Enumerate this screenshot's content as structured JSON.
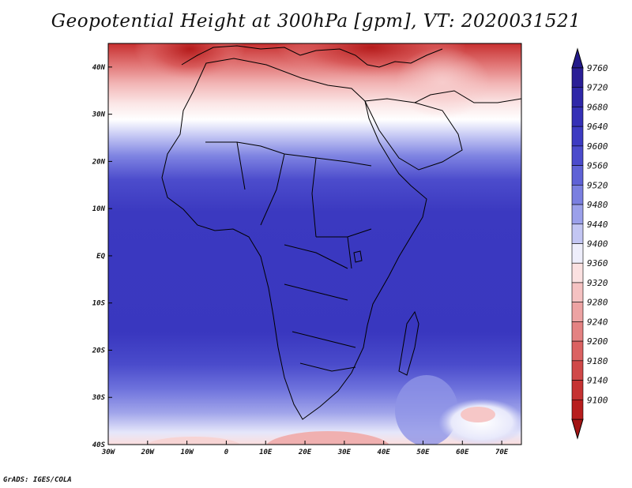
{
  "title": "Geopotential Height at 300hPa [gpm], VT: 2020031521",
  "credit": "GrADS: IGES/COLA",
  "map": {
    "lon_range": [
      -30,
      75
    ],
    "lat_range": [
      -40,
      45
    ],
    "x_ticks": [
      {
        "value": -30,
        "label": "30W"
      },
      {
        "value": -20,
        "label": "20W"
      },
      {
        "value": -10,
        "label": "10W"
      },
      {
        "value": 0,
        "label": "0"
      },
      {
        "value": 10,
        "label": "10E"
      },
      {
        "value": 20,
        "label": "20E"
      },
      {
        "value": 30,
        "label": "30E"
      },
      {
        "value": 40,
        "label": "40E"
      },
      {
        "value": 50,
        "label": "50E"
      },
      {
        "value": 60,
        "label": "60E"
      },
      {
        "value": 70,
        "label": "70E"
      }
    ],
    "y_ticks": [
      {
        "value": 40,
        "label": "40N"
      },
      {
        "value": 30,
        "label": "30N"
      },
      {
        "value": 20,
        "label": "20N"
      },
      {
        "value": 10,
        "label": "10N"
      },
      {
        "value": 0,
        "label": "EQ"
      },
      {
        "value": -10,
        "label": "10S"
      },
      {
        "value": -20,
        "label": "20S"
      },
      {
        "value": -30,
        "label": "30S"
      },
      {
        "value": -40,
        "label": "40S"
      }
    ]
  },
  "colorbar": {
    "levels": [
      {
        "label": "9760",
        "color": "#2a1e96"
      },
      {
        "label": "9720",
        "color": "#2f27a8"
      },
      {
        "label": "9680",
        "color": "#3530b6"
      },
      {
        "label": "9640",
        "color": "#3d3bc2"
      },
      {
        "label": "9600",
        "color": "#4b4bcc"
      },
      {
        "label": "9560",
        "color": "#5f62d6"
      },
      {
        "label": "9520",
        "color": "#7a7fe0"
      },
      {
        "label": "9480",
        "color": "#9ba0ea"
      },
      {
        "label": "9440",
        "color": "#c3c6f3"
      },
      {
        "label": "9400",
        "color": "#eeeefb"
      },
      {
        "label": "9360",
        "color": "#fbe1e1"
      },
      {
        "label": "9320",
        "color": "#f5c2c2"
      },
      {
        "label": "9280",
        "color": "#eda3a3"
      },
      {
        "label": "9240",
        "color": "#e48282"
      },
      {
        "label": "9200",
        "color": "#db6262"
      },
      {
        "label": "9180",
        "color": "#d04848"
      },
      {
        "label": "9140",
        "color": "#c53232"
      },
      {
        "label": "9100",
        "color": "#b71d1d"
      }
    ],
    "top_arrow_color": "#231a8a",
    "bottom_arrow_color": "#a31414"
  }
}
